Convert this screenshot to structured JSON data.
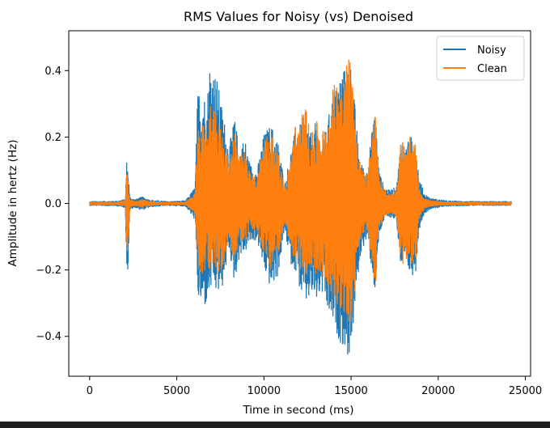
{
  "chart_data": {
    "type": "line",
    "title": "RMS Values for Noisy (vs) Denoised",
    "xlabel": "Time in second (ms)",
    "ylabel": "Amplitude in hertz (Hz)",
    "xlim": [
      -1200,
      25300
    ],
    "ylim": [
      -0.52,
      0.52
    ],
    "x_ticks": [
      {
        "value": 0,
        "label": "0"
      },
      {
        "value": 5000,
        "label": "5000"
      },
      {
        "value": 10000,
        "label": "10000"
      },
      {
        "value": 15000,
        "label": "15000"
      },
      {
        "value": 20000,
        "label": "20000"
      },
      {
        "value": 25000,
        "label": "25000"
      }
    ],
    "y_ticks": [
      {
        "value": 0.4,
        "label": "0.4"
      },
      {
        "value": 0.2,
        "label": "0.2"
      },
      {
        "value": 0.0,
        "label": "0.0"
      },
      {
        "value": -0.2,
        "label": "−0.2"
      },
      {
        "value": -0.4,
        "label": "−0.4"
      }
    ],
    "grid": false,
    "legend_position": "top-right",
    "series": [
      {
        "name": "Noisy",
        "color": "#1f77b4",
        "envelope": {
          "x": [
            0,
            1500,
            2050,
            2120,
            2200,
            2300,
            2600,
            3000,
            3500,
            4500,
            5500,
            6050,
            6200,
            6500,
            6700,
            6900,
            7100,
            7300,
            7600,
            8000,
            8300,
            8600,
            8900,
            9200,
            9600,
            10000,
            10400,
            10800,
            11200,
            11500,
            11800,
            12100,
            12400,
            12700,
            13000,
            13300,
            13600,
            13900,
            14200,
            14500,
            14700,
            14850,
            15000,
            15200,
            15400,
            15600,
            15900,
            16200,
            16400,
            16600,
            16900,
            17200,
            17600,
            17900,
            18100,
            18400,
            18700,
            18900,
            19200,
            19600,
            20000,
            20500,
            21000,
            22000,
            23000,
            24200
          ],
          "upper": [
            0.006,
            0.007,
            0.012,
            0.13,
            0.11,
            0.02,
            0.012,
            0.02,
            0.01,
            0.006,
            0.008,
            0.05,
            0.34,
            0.36,
            0.29,
            0.44,
            0.41,
            0.38,
            0.29,
            0.17,
            0.26,
            0.17,
            0.2,
            0.12,
            0.1,
            0.21,
            0.24,
            0.19,
            0.06,
            0.15,
            0.22,
            0.24,
            0.27,
            0.21,
            0.25,
            0.17,
            0.23,
            0.32,
            0.36,
            0.42,
            0.4,
            0.46,
            0.42,
            0.31,
            0.18,
            0.12,
            0.1,
            0.22,
            0.29,
            0.1,
            0.05,
            0.04,
            0.05,
            0.21,
            0.17,
            0.2,
            0.21,
            0.08,
            0.03,
            0.015,
            0.012,
            0.008,
            0.007,
            0.006,
            0.006,
            0.006
          ],
          "lower": [
            -0.006,
            -0.007,
            -0.012,
            -0.22,
            -0.2,
            -0.02,
            -0.012,
            -0.02,
            -0.01,
            -0.006,
            -0.008,
            -0.05,
            -0.29,
            -0.32,
            -0.31,
            -0.27,
            -0.25,
            -0.28,
            -0.26,
            -0.14,
            -0.24,
            -0.16,
            -0.15,
            -0.12,
            -0.11,
            -0.2,
            -0.26,
            -0.22,
            -0.08,
            -0.18,
            -0.2,
            -0.27,
            -0.31,
            -0.28,
            -0.3,
            -0.27,
            -0.33,
            -0.36,
            -0.4,
            -0.43,
            -0.45,
            -0.47,
            -0.44,
            -0.34,
            -0.22,
            -0.14,
            -0.11,
            -0.2,
            -0.29,
            -0.1,
            -0.05,
            -0.04,
            -0.05,
            -0.23,
            -0.19,
            -0.22,
            -0.21,
            -0.08,
            -0.03,
            -0.015,
            -0.012,
            -0.008,
            -0.007,
            -0.006,
            -0.006,
            -0.006
          ]
        }
      },
      {
        "name": "Clean",
        "color": "#ff7f0e",
        "envelope": {
          "x": [
            0,
            1500,
            2050,
            2120,
            2200,
            2300,
            2600,
            3000,
            3500,
            4500,
            5500,
            6050,
            6200,
            6500,
            6700,
            6900,
            7100,
            7300,
            7600,
            8000,
            8300,
            8600,
            8900,
            9200,
            9600,
            10000,
            10400,
            10800,
            11200,
            11500,
            11800,
            12100,
            12400,
            12700,
            13000,
            13300,
            13600,
            13900,
            14200,
            14500,
            14700,
            14850,
            15000,
            15200,
            15400,
            15600,
            15900,
            16200,
            16400,
            16600,
            16900,
            17200,
            17600,
            17900,
            18100,
            18400,
            18700,
            18900,
            19200,
            19600,
            20000,
            20500,
            21000,
            22000,
            23000,
            24200
          ],
          "upper": [
            0.004,
            0.004,
            0.008,
            0.1,
            0.08,
            0.012,
            0.006,
            0.012,
            0.006,
            0.003,
            0.004,
            0.03,
            0.22,
            0.24,
            0.2,
            0.3,
            0.28,
            0.26,
            0.22,
            0.12,
            0.24,
            0.14,
            0.16,
            0.09,
            0.08,
            0.2,
            0.22,
            0.16,
            0.05,
            0.13,
            0.24,
            0.26,
            0.3,
            0.2,
            0.25,
            0.22,
            0.24,
            0.34,
            0.38,
            0.42,
            0.41,
            0.48,
            0.43,
            0.3,
            0.16,
            0.1,
            0.08,
            0.22,
            0.29,
            0.08,
            0.04,
            0.03,
            0.04,
            0.22,
            0.16,
            0.2,
            0.18,
            0.05,
            0.015,
            0.008,
            0.006,
            0.005,
            0.004,
            0.004,
            0.004,
            0.004
          ],
          "lower": [
            -0.004,
            -0.004,
            -0.008,
            -0.17,
            -0.15,
            -0.012,
            -0.006,
            -0.012,
            -0.006,
            -0.003,
            -0.004,
            -0.03,
            -0.2,
            -0.22,
            -0.18,
            -0.2,
            -0.19,
            -0.21,
            -0.2,
            -0.11,
            -0.18,
            -0.12,
            -0.12,
            -0.08,
            -0.08,
            -0.17,
            -0.2,
            -0.16,
            -0.05,
            -0.14,
            -0.18,
            -0.2,
            -0.22,
            -0.19,
            -0.22,
            -0.21,
            -0.25,
            -0.27,
            -0.3,
            -0.34,
            -0.38,
            -0.41,
            -0.36,
            -0.28,
            -0.17,
            -0.1,
            -0.08,
            -0.18,
            -0.26,
            -0.08,
            -0.04,
            -0.03,
            -0.04,
            -0.2,
            -0.17,
            -0.2,
            -0.18,
            -0.05,
            -0.015,
            -0.008,
            -0.006,
            -0.005,
            -0.004,
            -0.004,
            -0.004,
            -0.004
          ]
        }
      }
    ]
  }
}
